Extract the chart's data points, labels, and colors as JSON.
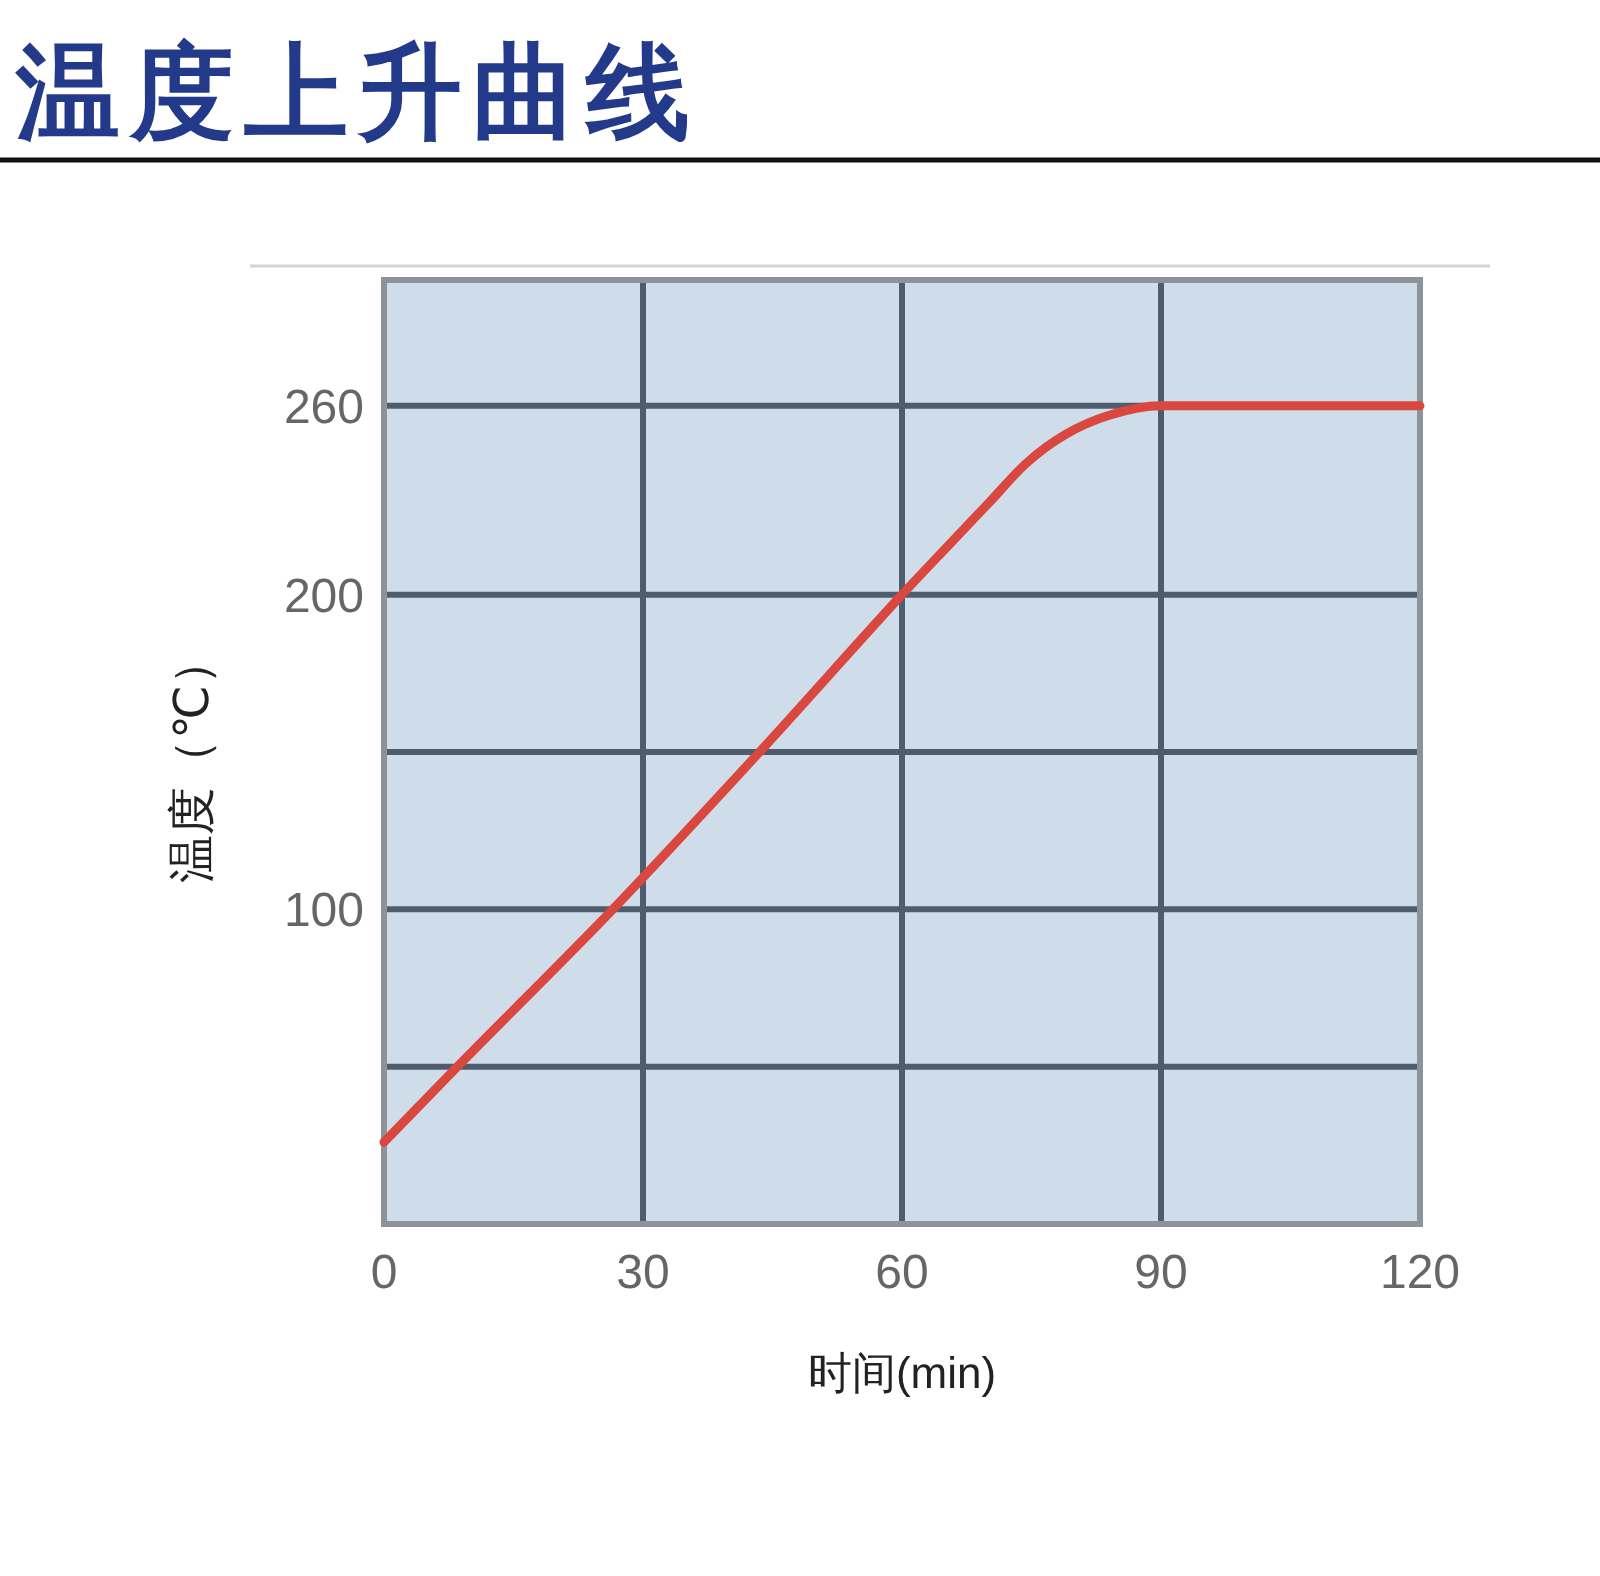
{
  "chart_data": {
    "type": "line",
    "title": "温度上升曲线",
    "xlabel": "时间(min)",
    "ylabel": "温度（℃）",
    "x": [
      0,
      8.5,
      26.5,
      43.5,
      60,
      65.5,
      70,
      74.5,
      79,
      84,
      90,
      120
    ],
    "series": [
      {
        "color": "#d9473f",
        "values": [
          26,
          50,
          100,
          150,
          200,
          216,
          229,
          242,
          251,
          257,
          260,
          260
        ]
      }
    ],
    "xlim": [
      0,
      120
    ],
    "xticks": [
      0,
      30,
      60,
      90,
      120
    ],
    "ylim": [
      0,
      300
    ],
    "yticks": [
      {
        "value": 50,
        "label": null
      },
      100,
      {
        "value": 150,
        "label": null
      },
      200,
      260
    ],
    "grid": true
  }
}
